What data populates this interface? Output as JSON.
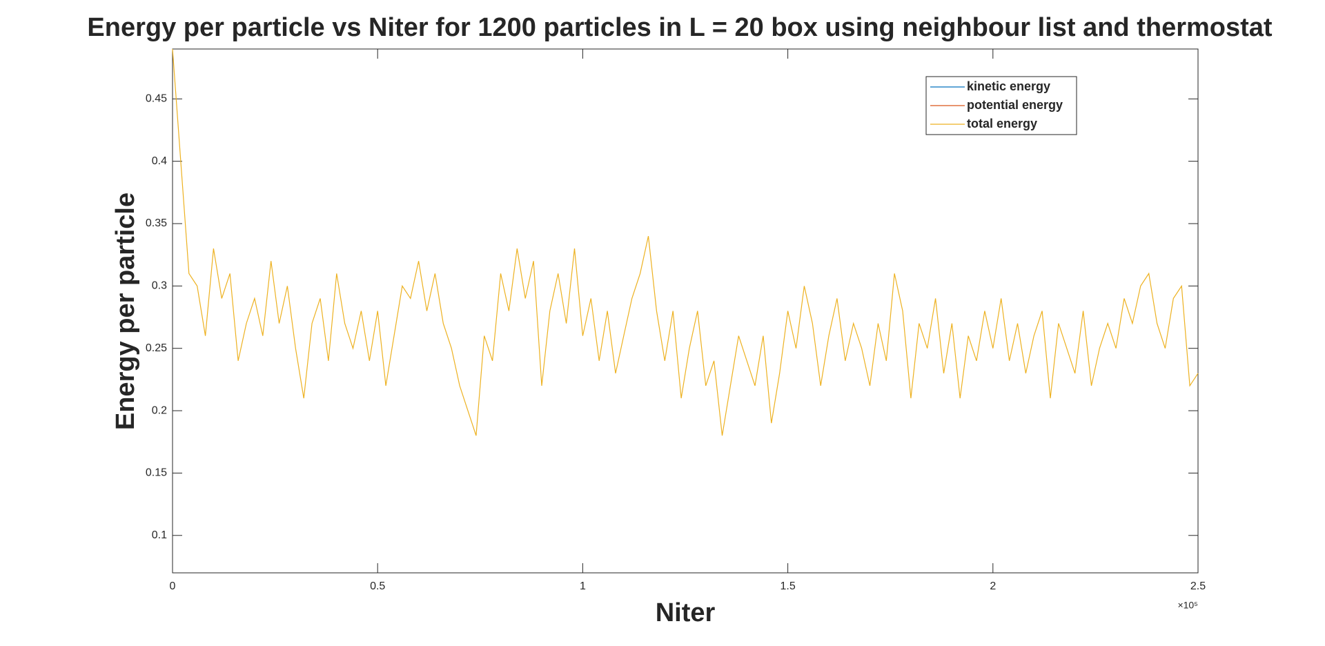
{
  "chart_data": {
    "type": "line",
    "title": "Energy per particle vs Niter for 1200 particles in L = 20 box using neighbour list and thermostat",
    "xlabel": "Niter",
    "ylabel": "Energy per particle",
    "x_multiplier_label": "×10⁵",
    "x": [
      0,
      2000,
      4000,
      6000,
      8000,
      10000,
      12000,
      14000,
      16000,
      18000,
      20000,
      22000,
      24000,
      26000,
      28000,
      30000,
      32000,
      34000,
      36000,
      38000,
      40000,
      42000,
      44000,
      46000,
      48000,
      50000,
      52000,
      54000,
      56000,
      58000,
      60000,
      62000,
      64000,
      66000,
      68000,
      70000,
      72000,
      74000,
      76000,
      78000,
      80000,
      82000,
      84000,
      86000,
      88000,
      90000,
      92000,
      94000,
      96000,
      98000,
      100000,
      102000,
      104000,
      106000,
      108000,
      110000,
      112000,
      114000,
      116000,
      118000,
      120000,
      122000,
      124000,
      126000,
      128000,
      130000,
      132000,
      134000,
      136000,
      138000,
      140000,
      142000,
      144000,
      146000,
      148000,
      150000,
      152000,
      154000,
      156000,
      158000,
      160000,
      162000,
      164000,
      166000,
      168000,
      170000,
      172000,
      174000,
      176000,
      178000,
      180000,
      182000,
      184000,
      186000,
      188000,
      190000,
      192000,
      194000,
      196000,
      198000,
      200000,
      202000,
      204000,
      206000,
      208000,
      210000,
      212000,
      214000,
      216000,
      218000,
      220000,
      222000,
      224000,
      226000,
      228000,
      230000,
      232000,
      234000,
      236000,
      238000,
      240000,
      242000,
      244000,
      246000,
      248000,
      250000
    ],
    "series": [
      {
        "name": "kinetic energy",
        "color": "#0072bd",
        "values": [
          null,
          null,
          null,
          null,
          null,
          null,
          null,
          null,
          null,
          null,
          null,
          null,
          null,
          null,
          null,
          null,
          null,
          null,
          null,
          null,
          null,
          null,
          null,
          null,
          null,
          null,
          null,
          null,
          null,
          null,
          null,
          null,
          null,
          null,
          null,
          null,
          null,
          null,
          null,
          null,
          null,
          null,
          null,
          null,
          null,
          null,
          null,
          null,
          null,
          null,
          null,
          null,
          null,
          null,
          null,
          null,
          null,
          null,
          null,
          null,
          null,
          null,
          null,
          null,
          null,
          null,
          null,
          null,
          null,
          null,
          null,
          null,
          null,
          null,
          null,
          null,
          null,
          null,
          null,
          null,
          null,
          null,
          null,
          null,
          null,
          null,
          null,
          null,
          null,
          null,
          null,
          null,
          null,
          null,
          null,
          null,
          null,
          null,
          null,
          null,
          null,
          null,
          null,
          null,
          null,
          null,
          null,
          null,
          null,
          null,
          null,
          null,
          null,
          null,
          null,
          null,
          null,
          null,
          null,
          null,
          null,
          null,
          null,
          null,
          null,
          null
        ]
      },
      {
        "name": "potential energy",
        "color": "#d95319",
        "values": [
          null,
          null,
          null,
          null,
          null,
          null,
          null,
          null,
          null,
          null,
          null,
          null,
          null,
          null,
          null,
          null,
          null,
          null,
          null,
          null,
          null,
          null,
          null,
          null,
          null,
          null,
          null,
          null,
          null,
          null,
          null,
          null,
          null,
          null,
          null,
          null,
          null,
          null,
          null,
          null,
          null,
          null,
          null,
          null,
          null,
          null,
          null,
          null,
          null,
          null,
          null,
          null,
          null,
          null,
          null,
          null,
          null,
          null,
          null,
          null,
          null,
          null,
          null,
          null,
          null,
          null,
          null,
          null,
          null,
          null,
          null,
          null,
          null,
          null,
          null,
          null,
          null,
          null,
          null,
          null,
          null,
          null,
          null,
          null,
          null,
          null,
          null,
          null,
          null,
          null,
          null,
          null,
          null,
          null,
          null,
          null,
          null,
          null,
          null,
          null,
          null,
          null,
          null,
          null,
          null,
          null,
          null,
          null,
          null,
          null,
          null,
          null,
          null,
          null,
          null,
          null,
          null,
          null,
          null,
          null,
          null,
          null,
          null,
          null,
          null,
          null
        ]
      },
      {
        "name": "total energy",
        "color": "#edb120",
        "values": [
          0.49,
          0.4,
          0.31,
          0.3,
          0.26,
          0.33,
          0.29,
          0.31,
          0.24,
          0.27,
          0.29,
          0.26,
          0.32,
          0.27,
          0.3,
          0.25,
          0.21,
          0.27,
          0.29,
          0.24,
          0.31,
          0.27,
          0.25,
          0.28,
          0.24,
          0.28,
          0.22,
          0.26,
          0.3,
          0.29,
          0.32,
          0.28,
          0.31,
          0.27,
          0.25,
          0.22,
          0.2,
          0.18,
          0.26,
          0.24,
          0.31,
          0.28,
          0.33,
          0.29,
          0.32,
          0.22,
          0.28,
          0.31,
          0.27,
          0.33,
          0.26,
          0.29,
          0.24,
          0.28,
          0.23,
          0.26,
          0.29,
          0.31,
          0.34,
          0.28,
          0.24,
          0.28,
          0.21,
          0.25,
          0.28,
          0.22,
          0.24,
          0.18,
          0.22,
          0.26,
          0.24,
          0.22,
          0.26,
          0.19,
          0.23,
          0.28,
          0.25,
          0.3,
          0.27,
          0.22,
          0.26,
          0.29,
          0.24,
          0.27,
          0.25,
          0.22,
          0.27,
          0.24,
          0.31,
          0.28,
          0.21,
          0.27,
          0.25,
          0.29,
          0.23,
          0.27,
          0.21,
          0.26,
          0.24,
          0.28,
          0.25,
          0.29,
          0.24,
          0.27,
          0.23,
          0.26,
          0.28,
          0.21,
          0.27,
          0.25,
          0.23,
          0.28,
          0.22,
          0.25,
          0.27,
          0.25,
          0.29,
          0.27,
          0.3,
          0.31,
          0.27,
          0.25,
          0.29,
          0.3,
          0.22,
          0.23
        ]
      }
    ],
    "xlim": [
      0,
      250000
    ],
    "xticks": [
      0,
      {
        "value": 50000,
        "label": "0.5"
      },
      {
        "value": 100000,
        "label": "1"
      },
      {
        "value": 150000,
        "label": "1.5"
      },
      {
        "value": 200000,
        "label": "2"
      },
      {
        "value": 250000,
        "label": "2.5"
      }
    ],
    "ylim": [
      0.07,
      0.49
    ],
    "yticks": [
      0.1,
      0.15,
      0.2,
      0.25,
      0.3,
      0.35,
      0.4,
      0.45
    ],
    "legend": "upper-right",
    "grid": false
  }
}
